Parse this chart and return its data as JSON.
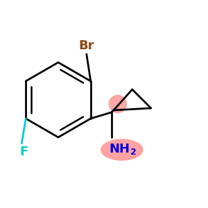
{
  "bg_color": "#ffffff",
  "bond_color": "#000000",
  "br_color": "#8B4513",
  "f_color": "#00CCCC",
  "f_bond_color": "#00CCCC",
  "nh2_color": "#0000DD",
  "nh2_bg": "#FF9999",
  "cp_highlight": "#FF9999",
  "br_label": "Br",
  "f_label": "F",
  "nh2_label": "NH",
  "nh2_sub": "2"
}
